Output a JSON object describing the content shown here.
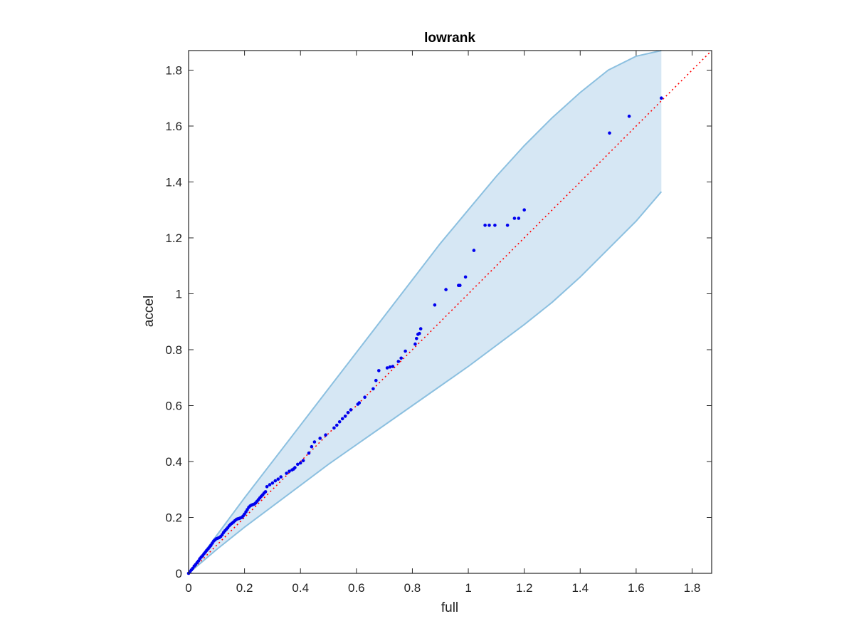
{
  "chart_data": {
    "type": "scatter",
    "title": "lowrank",
    "xlabel": "full",
    "ylabel": "accel",
    "xlim": [
      0,
      1.87
    ],
    "ylim": [
      0,
      1.87
    ],
    "xticks": [
      "0",
      "0.2",
      "0.4",
      "0.6",
      "0.8",
      "1",
      "1.2",
      "1.4",
      "1.6",
      "1.8"
    ],
    "yticks": [
      "0",
      "0.2",
      "0.4",
      "0.6",
      "0.8",
      "1",
      "1.2",
      "1.4",
      "1.6",
      "1.8"
    ],
    "grid": false,
    "legend": "none",
    "colors": {
      "points": "#0000ee",
      "reference_line": "#ff0000",
      "band_fill": "#d6e7f4",
      "band_edge": "#8cc0e0",
      "axes": "#262626"
    },
    "reference_line": {
      "style": "dotted",
      "x": [
        0,
        1.87
      ],
      "y": [
        0,
        1.87
      ]
    },
    "band": {
      "x": [
        0.0,
        0.1,
        0.2,
        0.3,
        0.4,
        0.5,
        0.6,
        0.7,
        0.8,
        0.9,
        1.0,
        1.1,
        1.2,
        1.3,
        1.4,
        1.5,
        1.6,
        1.69
      ],
      "upper": [
        0.0,
        0.135,
        0.27,
        0.4,
        0.53,
        0.66,
        0.79,
        0.92,
        1.05,
        1.18,
        1.3,
        1.42,
        1.53,
        1.63,
        1.72,
        1.8,
        1.85,
        1.87
      ],
      "lower": [
        0.0,
        0.085,
        0.165,
        0.24,
        0.315,
        0.39,
        0.46,
        0.53,
        0.6,
        0.67,
        0.74,
        0.815,
        0.89,
        0.97,
        1.06,
        1.16,
        1.26,
        1.365
      ]
    },
    "series": [
      {
        "x": [
          0.0,
          0.005,
          0.01,
          0.015,
          0.02,
          0.025,
          0.03,
          0.035,
          0.04,
          0.045,
          0.05,
          0.055,
          0.06,
          0.065,
          0.07,
          0.075,
          0.08,
          0.085,
          0.09,
          0.095,
          0.1,
          0.105,
          0.11,
          0.115,
          0.12,
          0.125,
          0.13,
          0.135,
          0.14,
          0.145,
          0.15,
          0.155,
          0.16,
          0.165,
          0.17,
          0.175,
          0.18,
          0.185,
          0.19,
          0.195,
          0.2,
          0.205,
          0.21,
          0.215,
          0.22,
          0.225,
          0.23,
          0.235,
          0.24,
          0.245,
          0.25,
          0.255,
          0.26,
          0.265,
          0.27,
          0.275,
          0.28,
          0.29,
          0.3,
          0.31,
          0.32,
          0.33,
          0.35,
          0.36,
          0.37,
          0.375,
          0.38,
          0.39,
          0.4,
          0.41,
          0.43,
          0.44,
          0.45,
          0.47,
          0.49,
          0.52,
          0.53,
          0.54,
          0.55,
          0.56,
          0.57,
          0.58,
          0.605,
          0.61,
          0.63,
          0.66,
          0.67,
          0.68,
          0.71,
          0.72,
          0.73,
          0.75,
          0.76,
          0.775,
          0.81,
          0.815,
          0.82,
          0.825,
          0.83,
          0.88,
          0.92,
          0.965,
          0.97,
          0.99,
          1.02,
          1.06,
          1.075,
          1.095,
          1.14,
          1.165,
          1.18,
          1.2,
          1.505,
          1.575,
          1.69
        ],
        "y": [
          0.0,
          0.006,
          0.012,
          0.018,
          0.026,
          0.031,
          0.038,
          0.044,
          0.052,
          0.058,
          0.063,
          0.07,
          0.076,
          0.082,
          0.088,
          0.094,
          0.1,
          0.108,
          0.116,
          0.12,
          0.124,
          0.126,
          0.128,
          0.132,
          0.138,
          0.146,
          0.152,
          0.158,
          0.163,
          0.17,
          0.175,
          0.179,
          0.183,
          0.188,
          0.192,
          0.195,
          0.196,
          0.198,
          0.2,
          0.205,
          0.212,
          0.22,
          0.228,
          0.236,
          0.241,
          0.244,
          0.246,
          0.248,
          0.252,
          0.258,
          0.264,
          0.27,
          0.276,
          0.281,
          0.287,
          0.292,
          0.31,
          0.317,
          0.323,
          0.331,
          0.337,
          0.345,
          0.358,
          0.365,
          0.37,
          0.373,
          0.378,
          0.39,
          0.395,
          0.403,
          0.43,
          0.453,
          0.47,
          0.483,
          0.495,
          0.52,
          0.53,
          0.542,
          0.553,
          0.562,
          0.575,
          0.585,
          0.605,
          0.61,
          0.63,
          0.66,
          0.69,
          0.725,
          0.735,
          0.738,
          0.74,
          0.758,
          0.77,
          0.795,
          0.82,
          0.84,
          0.855,
          0.858,
          0.875,
          0.96,
          1.015,
          1.03,
          1.03,
          1.06,
          1.155,
          1.245,
          1.245,
          1.245,
          1.245,
          1.27,
          1.27,
          1.3,
          1.575,
          1.635,
          1.7
        ]
      }
    ]
  }
}
